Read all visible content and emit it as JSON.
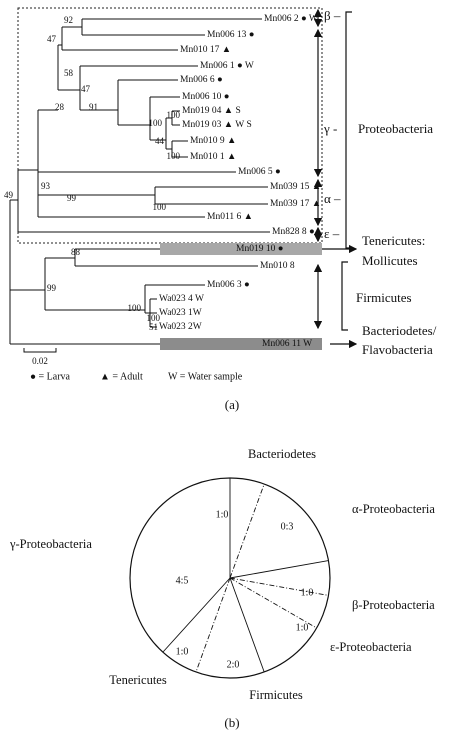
{
  "panel_a": {
    "leaves": [
      "Mn006 2 ● W",
      "Mn006 13 ●",
      "Mn010 17 ▲",
      "Mn006 1 ● W",
      "Mn006 6 ●",
      "Mn006 10 ●",
      "Mn019 04 ▲ S",
      "Mn019 03 ▲ W S",
      "Mn010 9 ▲",
      "Mn010 1 ▲",
      "Mn006 5 ●",
      "Mn039 15 ▲",
      "Mn039 17 ▲",
      "Mn011 6 ▲",
      "Mn828 8 ●",
      "Mn019 10 ●",
      "Mn010 8",
      "Mn006 3 ●",
      "Wa023 4 W",
      "Wa023 1W",
      "Wa023 2W",
      "Mn006 11 W"
    ],
    "bootstrap": [
      92,
      47,
      58,
      47,
      91,
      28,
      100,
      100,
      44,
      100,
      93,
      99,
      100,
      49,
      88,
      99,
      100,
      100,
      51
    ],
    "subgroups": [
      "β –",
      "γ -",
      "α –",
      "ε –"
    ],
    "groups": [
      "Proteobacteria",
      "Tenericutes:",
      "Mollicutes",
      "Firmicutes",
      "Bacteriodetes/",
      "Flavobacteria"
    ],
    "scale": "0.02",
    "legend": [
      "● = Larva",
      "▲ = Adult",
      "W = Water sample"
    ],
    "caption": "(a)"
  },
  "panel_b": {
    "labels": [
      "Bacteriodetes",
      "α-Proteobacteria",
      "β-Proteobacteria",
      "ε-Proteobacteria",
      "Firmicutes",
      "Tenericutes",
      "γ-Proteobacteria"
    ],
    "ratios": [
      "1:0",
      "0:3",
      "1:0",
      "1:0",
      "2:0",
      "1:0",
      "4:5"
    ],
    "caption": "(b)"
  }
}
